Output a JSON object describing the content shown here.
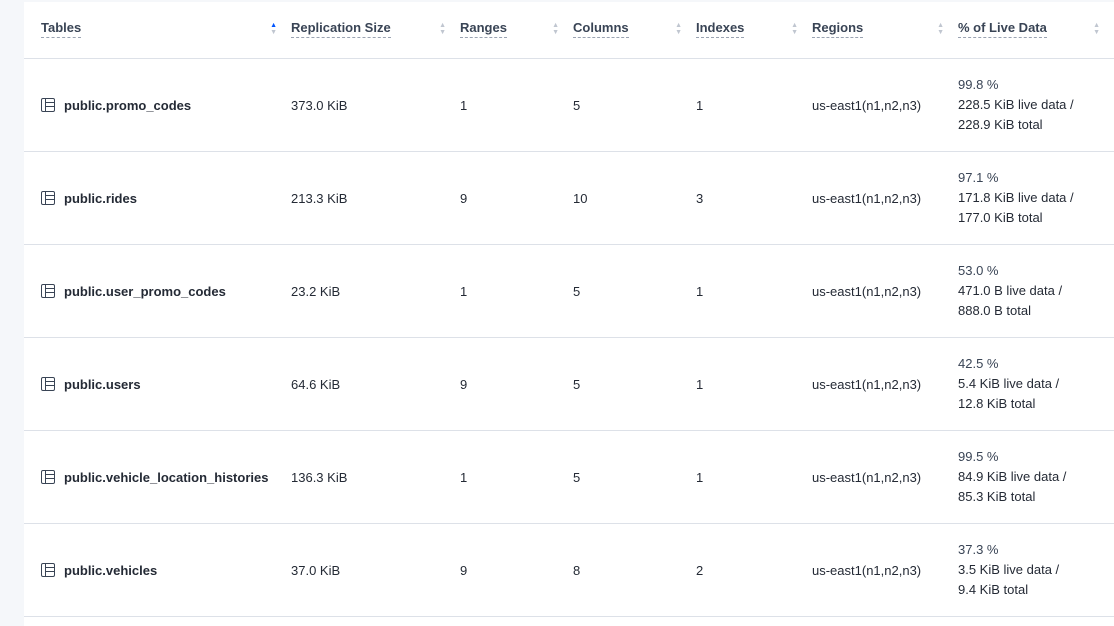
{
  "columns": [
    {
      "label": "Tables",
      "sort": "ascending"
    },
    {
      "label": "Replication Size",
      "sort": "none"
    },
    {
      "label": "Ranges",
      "sort": "none"
    },
    {
      "label": "Columns",
      "sort": "none"
    },
    {
      "label": "Indexes",
      "sort": "none"
    },
    {
      "label": "Regions",
      "sort": "none"
    },
    {
      "label": "% of Live Data",
      "sort": "none"
    }
  ],
  "rows": [
    {
      "name": "public.promo_codes",
      "size": "373.0 KiB",
      "ranges": "1",
      "columns": "5",
      "indexes": "1",
      "regions": "us-east1(n1,n2,n3)",
      "pct": "99.8 %",
      "live": "228.5 KiB live data /",
      "total": "228.9 KiB total"
    },
    {
      "name": "public.rides",
      "size": "213.3 KiB",
      "ranges": "9",
      "columns": "10",
      "indexes": "3",
      "regions": "us-east1(n1,n2,n3)",
      "pct": "97.1 %",
      "live": "171.8 KiB live data /",
      "total": "177.0 KiB total"
    },
    {
      "name": "public.user_promo_codes",
      "size": "23.2 KiB",
      "ranges": "1",
      "columns": "5",
      "indexes": "1",
      "regions": "us-east1(n1,n2,n3)",
      "pct": "53.0 %",
      "live": "471.0 B live data /",
      "total": "888.0 B total"
    },
    {
      "name": "public.users",
      "size": "64.6 KiB",
      "ranges": "9",
      "columns": "5",
      "indexes": "1",
      "regions": "us-east1(n1,n2,n3)",
      "pct": "42.5 %",
      "live": "5.4 KiB live data /",
      "total": "12.8 KiB total"
    },
    {
      "name": "public.vehicle_location_histories",
      "size": "136.3 KiB",
      "ranges": "1",
      "columns": "5",
      "indexes": "1",
      "regions": "us-east1(n1,n2,n3)",
      "pct": "99.5 %",
      "live": "84.9 KiB live data /",
      "total": "85.3 KiB total"
    },
    {
      "name": "public.vehicles",
      "size": "37.0 KiB",
      "ranges": "9",
      "columns": "8",
      "indexes": "2",
      "regions": "us-east1(n1,n2,n3)",
      "pct": "37.3 %",
      "live": "3.5 KiB live data /",
      "total": "9.4 KiB total"
    }
  ],
  "colors": {
    "accent": "#0055ff",
    "text": "#242a35",
    "border": "#dde1e8"
  }
}
